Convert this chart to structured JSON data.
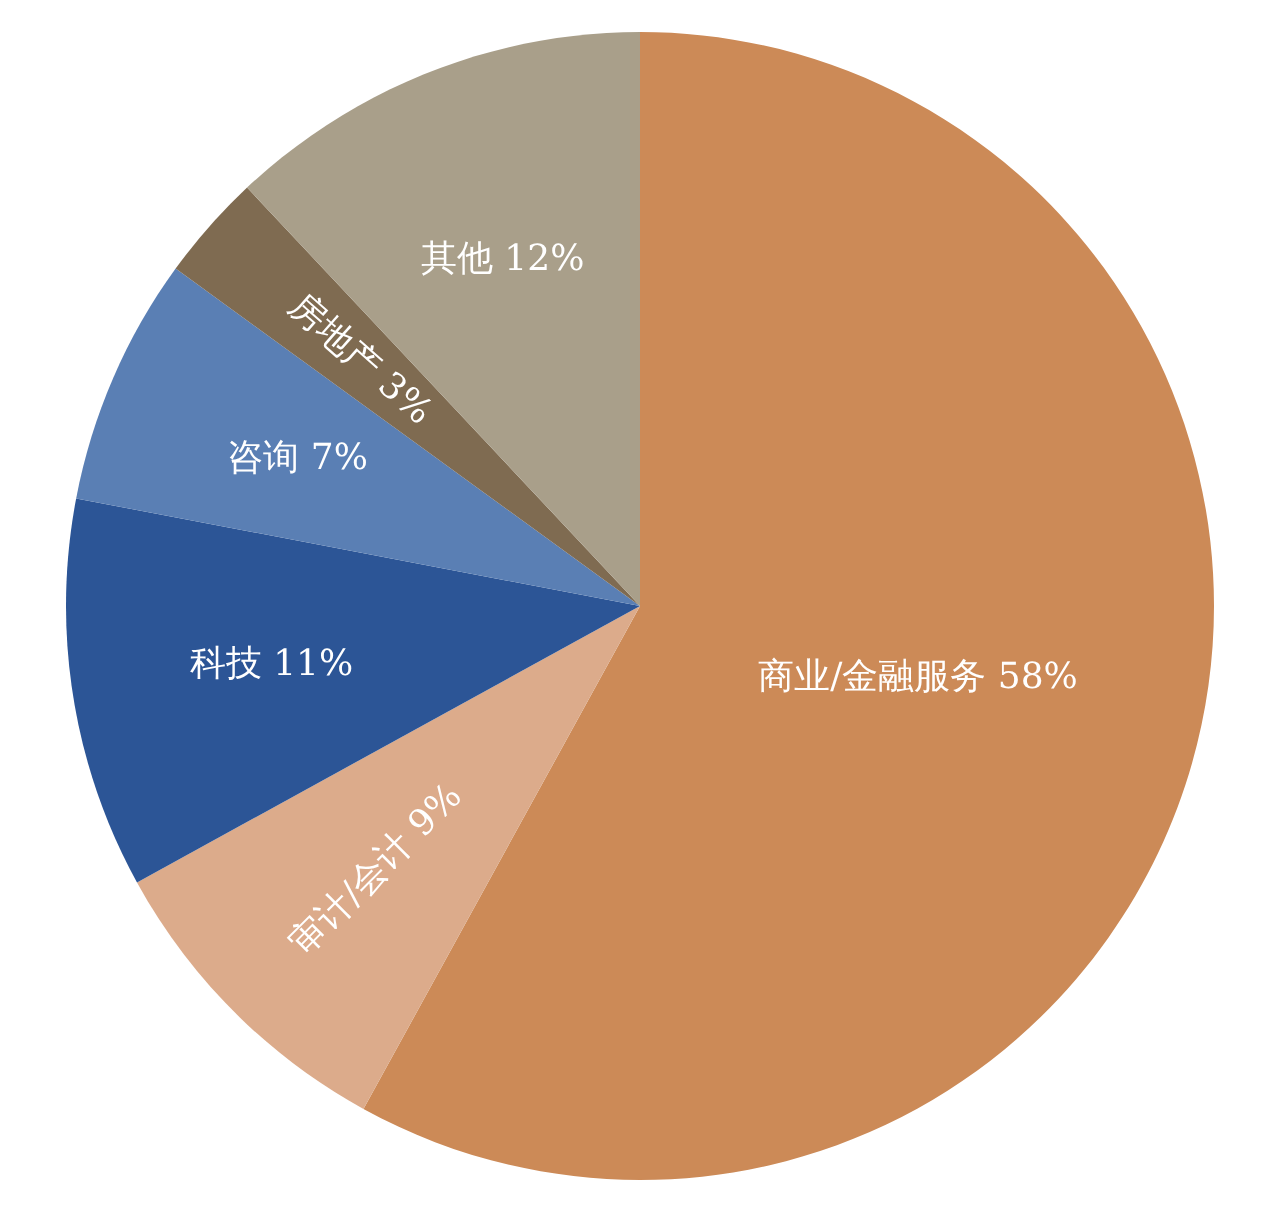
{
  "chart_data": {
    "type": "pie",
    "categories": [
      "商业/金融服务",
      "审计/会计",
      "科技",
      "咨询",
      "房地产",
      "其他"
    ],
    "values": [
      58,
      9,
      11,
      7,
      3,
      12
    ],
    "colors": [
      "#cc8a57",
      "#dcab8b",
      "#2c5596",
      "#5a7fb4",
      "#7f6b51",
      "#a99f8a"
    ],
    "value_labels": [
      "58%",
      "9%",
      "11%",
      "7%",
      "3%",
      "12%"
    ]
  }
}
